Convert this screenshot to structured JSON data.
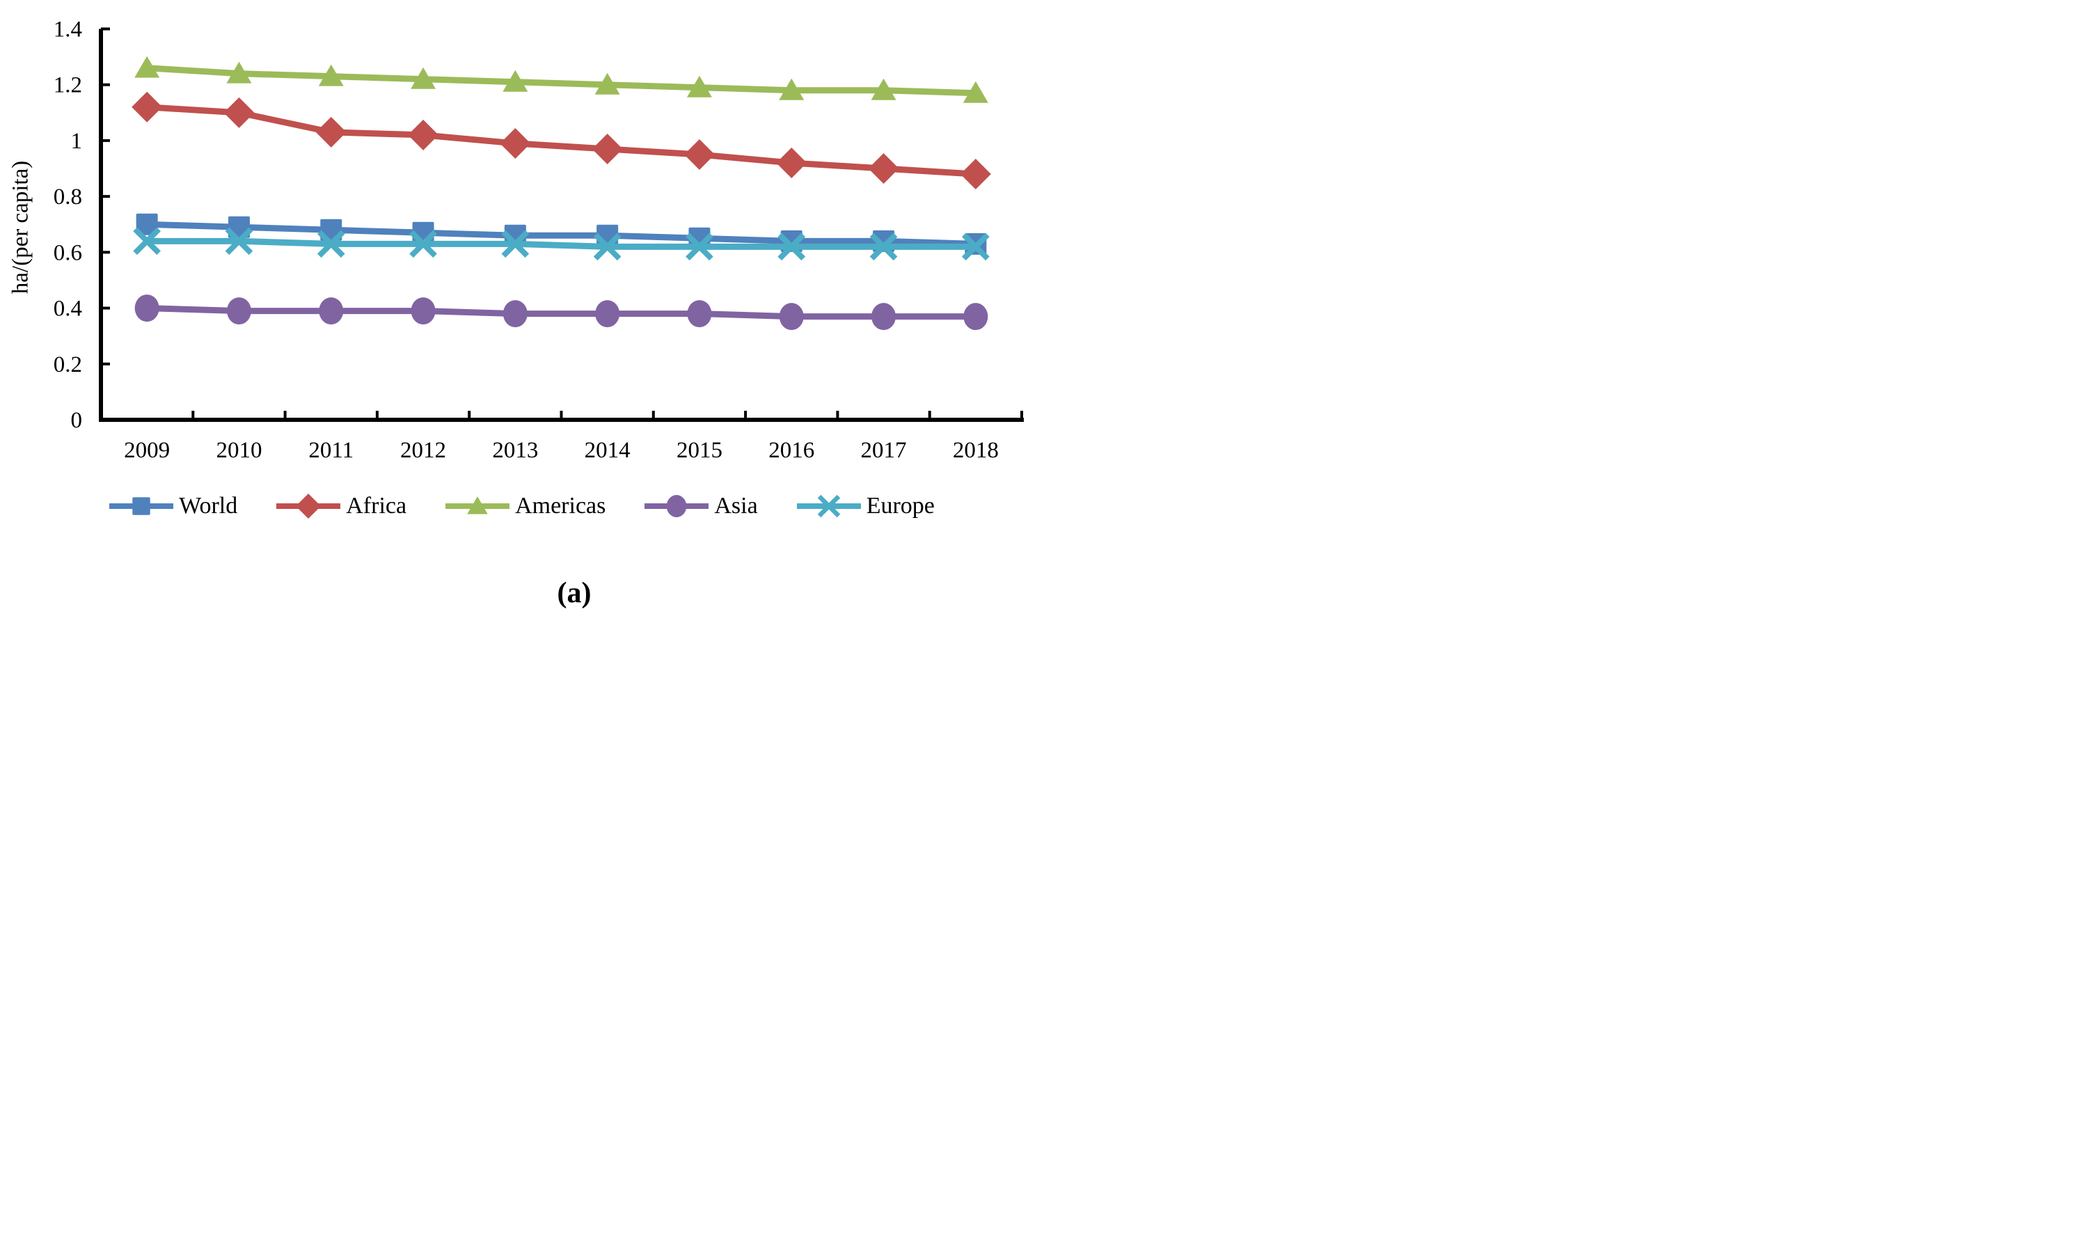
{
  "chart_data": {
    "type": "line",
    "title": "",
    "ylabel": "ha/(per capita)",
    "xlabel": "",
    "ylim": [
      0,
      1.4
    ],
    "yticks": [
      0,
      0.2,
      0.4,
      0.6,
      0.8,
      1,
      1.2,
      1.4
    ],
    "ytick_labels": [
      "0",
      "0.2",
      "0.4",
      "0.6",
      "0.8",
      "1",
      "1.2",
      "1.4"
    ],
    "categories": [
      "2009",
      "2010",
      "2011",
      "2012",
      "2013",
      "2014",
      "2015",
      "2016",
      "2017",
      "2018"
    ],
    "grid": false,
    "legend_position": "bottom",
    "axis_color": "#000000",
    "background": "#ffffff",
    "series": [
      {
        "name": "World",
        "color": "#4F81BD",
        "marker": "square",
        "values": [
          0.7,
          0.69,
          0.68,
          0.67,
          0.66,
          0.66,
          0.65,
          0.64,
          0.64,
          0.63
        ]
      },
      {
        "name": "Africa",
        "color": "#C0504D",
        "marker": "diamond",
        "values": [
          1.12,
          1.1,
          1.03,
          1.02,
          0.99,
          0.97,
          0.95,
          0.92,
          0.9,
          0.88
        ]
      },
      {
        "name": "Americas",
        "color": "#9BBB59",
        "marker": "triangle",
        "values": [
          1.26,
          1.24,
          1.23,
          1.22,
          1.21,
          1.2,
          1.19,
          1.18,
          1.18,
          1.17
        ]
      },
      {
        "name": "Asia",
        "color": "#8064A2",
        "marker": "circle",
        "values": [
          0.4,
          0.39,
          0.39,
          0.39,
          0.38,
          0.38,
          0.38,
          0.37,
          0.37,
          0.37
        ]
      },
      {
        "name": "Europe",
        "color": "#4BACC6",
        "marker": "x",
        "values": [
          0.64,
          0.64,
          0.63,
          0.63,
          0.63,
          0.62,
          0.62,
          0.62,
          0.62,
          0.62
        ]
      }
    ],
    "caption": "(a)"
  }
}
